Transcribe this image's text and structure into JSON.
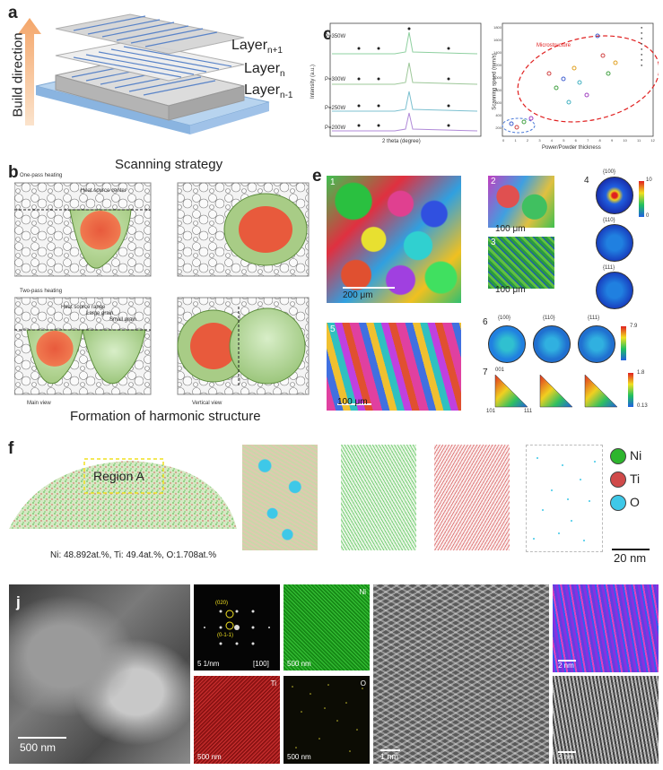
{
  "panels": {
    "a": {
      "label": "a",
      "build_direction": "Build direction",
      "layer_top": "Layer n+1",
      "layer_top_base": "Layer",
      "layer_top_sub": "n+1",
      "layer_mid_base": "Layer",
      "layer_mid_sub": "n",
      "layer_bot_base": "Layer",
      "layer_bot_sub": "n-1",
      "caption": "Scanning strategy"
    },
    "b": {
      "label": "b",
      "one_pass": "One-pass heating",
      "two_pass": "Two-pass heating",
      "heat_source_center": "Heat source center",
      "anno1": "Heat source range",
      "anno2": "Large grain",
      "anno3": "Small grain",
      "main_view": "Main view",
      "vertical_view": "Vertical view",
      "caption": "Formation of harmonic structure"
    },
    "c": {
      "label": "c",
      "ylabel": "Intensity (a.u.)",
      "xlabel": "2 theta (degree)",
      "traces": [
        "P=350W",
        "P=300W",
        "P=250W",
        "P=200W"
      ]
    },
    "d": {
      "label": "d",
      "ylabel": "Scanning speed (mm/s)",
      "xlabel": "Power/Powder thickness",
      "region": "Microstructure",
      "yticks": [
        "1800",
        "1600",
        "1400",
        "1200",
        "1000",
        "800",
        "600",
        "400",
        "200"
      ],
      "xticks": [
        "0",
        "1",
        "2",
        "3",
        "4",
        "5",
        "6",
        "7",
        "8",
        "9",
        "10",
        "11",
        "12"
      ]
    },
    "e": {
      "label": "e",
      "sub1": "1",
      "sub2": "2",
      "sub3": "3",
      "sub4": "4",
      "sub5": "5",
      "sub6": "6",
      "sub7": "7",
      "scale1": "200 μm",
      "scale2": "100 μm",
      "scale3": "100 μm",
      "scale5": "100 μm",
      "pf4": [
        "{100}",
        "{110}",
        "{111}"
      ],
      "pf6": [
        "{100}",
        "{110}",
        "{111}"
      ],
      "cbar4_max": "10",
      "cbar4_min": "0",
      "cbar6_max": "7.9",
      "cbar7_max": "1.8",
      "cbar7_min": "0.13",
      "ipf_corner_top": "001",
      "ipf_corner_left": "101",
      "ipf_corner_right": "111"
    },
    "f": {
      "label": "f",
      "region": "Region A",
      "composition": "Ni: 48.892at.%, Ti: 49.4at.%, O:1.708at.%",
      "legend": [
        {
          "element": "Ni",
          "color": "#2db52d"
        },
        {
          "element": "Ti",
          "color": "#d04a4a"
        },
        {
          "element": "O",
          "color": "#3ec8e8"
        }
      ],
      "scale": "20 nm"
    },
    "j": {
      "label": "j",
      "scale_main": "500 nm",
      "saed_spot1": "(020)",
      "saed_spot2": "(0-1-1)",
      "saed_scale": "5 1/nm",
      "saed_zone": "[100]",
      "map_ni": "Ni",
      "map_ti": "Ti",
      "map_o": "O",
      "map_scale": "500 nm",
      "hrtem_scale": "1 nm",
      "gpa_scale1": "2 nm",
      "gpa_scale2": "2 nm"
    }
  }
}
